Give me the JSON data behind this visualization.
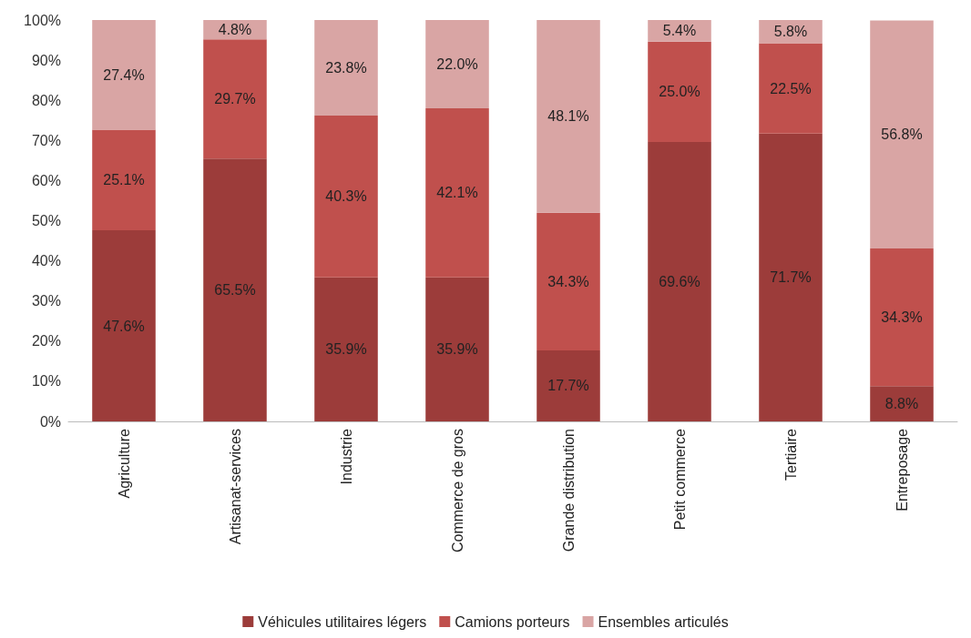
{
  "chart_data": {
    "type": "bar",
    "stacked": true,
    "categories": [
      "Agriculture",
      "Artisanat-services",
      "Industrie",
      "Commerce de gros",
      "Grande distribution",
      "Petit commerce",
      "Tertiaire",
      "Entreposage"
    ],
    "series": [
      {
        "name": "Véhicules utilitaires légers",
        "color": "#9c3c3a",
        "values": [
          47.6,
          65.5,
          35.9,
          35.9,
          17.7,
          69.6,
          71.7,
          8.8
        ],
        "value_labels": [
          "47.6%",
          "65.5%",
          "35.9%",
          "35.9%",
          "17.7%",
          "69.6%",
          "71.7%",
          "8.8%"
        ]
      },
      {
        "name": "Camions porteurs",
        "color": "#c0504d",
        "values": [
          25.1,
          29.7,
          40.3,
          42.1,
          34.3,
          25.0,
          22.5,
          34.3
        ],
        "value_labels": [
          "25.1%",
          "29.7%",
          "40.3%",
          "42.1%",
          "34.3%",
          "25.0%",
          "22.5%",
          "34.3%"
        ]
      },
      {
        "name": "Ensembles articulés",
        "color": "#d9a5a4",
        "values": [
          27.4,
          4.8,
          23.8,
          22.0,
          48.1,
          5.4,
          5.8,
          56.8
        ],
        "value_labels": [
          "27.4%",
          "4.8%",
          "23.8%",
          "22.0%",
          "48.1%",
          "5.4%",
          "5.8%",
          "56.8%"
        ]
      }
    ],
    "ylim": [
      0,
      100
    ],
    "yticks": [
      {
        "value": 0,
        "label": "0%"
      },
      {
        "value": 10,
        "label": "10%"
      },
      {
        "value": 20,
        "label": "20%"
      },
      {
        "value": 30,
        "label": "30%"
      },
      {
        "value": 40,
        "label": "40%"
      },
      {
        "value": 50,
        "label": "50%"
      },
      {
        "value": 60,
        "label": "60%"
      },
      {
        "value": 70,
        "label": "70%"
      },
      {
        "value": 80,
        "label": "80%"
      },
      {
        "value": 90,
        "label": "90%"
      },
      {
        "value": 100,
        "label": "100%"
      }
    ],
    "grid": false,
    "legend": "bottom"
  }
}
